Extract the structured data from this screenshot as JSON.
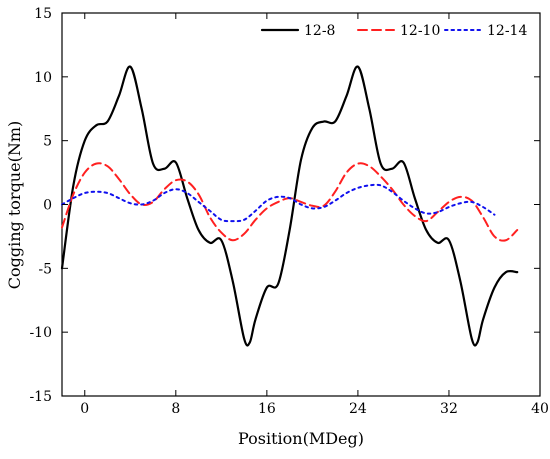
{
  "chart_data": {
    "type": "line",
    "xlabel": "Position(MDeg)",
    "ylabel": "Cogging torque(Nm)",
    "xlim": [
      -2,
      40
    ],
    "ylim": [
      -15,
      15
    ],
    "xticks": [
      0,
      8,
      16,
      24,
      32,
      40
    ],
    "yticks": [
      -15,
      -10,
      -5,
      0,
      5,
      10,
      15
    ],
    "legend_position": "top-right",
    "grid": false,
    "series": [
      {
        "name": "12-8",
        "color": "#000000",
        "dash": "solid",
        "x": [
          -2.0,
          -1.0,
          0.0,
          1.0,
          2.0,
          3.0,
          4.0,
          5.0,
          6.0,
          7.0,
          8.0,
          9.0,
          10.0,
          11.0,
          12.0,
          13.0,
          14.0,
          14.5,
          15.0,
          16.0,
          17.0,
          18.0,
          19.0,
          20.0,
          21.0,
          22.0,
          23.0,
          24.0,
          25.0,
          26.0,
          27.0,
          28.0,
          29.0,
          30.0,
          31.0,
          32.0,
          33.0,
          34.0,
          34.5,
          35.0,
          36.0,
          37.0,
          38.0
        ],
        "y": [
          -5.0,
          1.5,
          5.0,
          6.2,
          6.5,
          8.5,
          10.8,
          7.5,
          3.2,
          2.8,
          3.3,
          0.5,
          -2.0,
          -3.0,
          -2.8,
          -6.0,
          -10.5,
          -10.8,
          -9.0,
          -6.5,
          -6.2,
          -2.0,
          3.5,
          6.0,
          6.5,
          6.5,
          8.5,
          10.8,
          7.5,
          3.2,
          2.8,
          3.3,
          0.5,
          -2.0,
          -3.0,
          -2.8,
          -6.0,
          -10.5,
          -10.8,
          -9.0,
          -6.5,
          -5.3,
          -5.3
        ]
      },
      {
        "name": "12-10",
        "color": "#ff2020",
        "dash": "dashed",
        "x": [
          -2.0,
          -1.0,
          0.0,
          1.0,
          2.0,
          3.0,
          4.0,
          5.0,
          6.0,
          7.0,
          8.0,
          9.0,
          10.0,
          11.0,
          12.0,
          13.0,
          14.0,
          15.0,
          16.0,
          17.0,
          18.0,
          19.0,
          20.0,
          21.0,
          22.0,
          23.0,
          24.0,
          25.0,
          26.0,
          27.0,
          28.0,
          29.0,
          30.0,
          31.0,
          32.0,
          33.0,
          34.0,
          35.0,
          36.0,
          37.0,
          38.0
        ],
        "y": [
          -1.8,
          0.8,
          2.5,
          3.2,
          3.0,
          2.0,
          0.8,
          0.0,
          0.2,
          1.2,
          1.9,
          1.8,
          0.8,
          -1.0,
          -2.2,
          -2.8,
          -2.3,
          -1.2,
          -0.3,
          0.2,
          0.5,
          0.2,
          -0.1,
          -0.1,
          1.0,
          2.5,
          3.2,
          3.0,
          2.2,
          1.2,
          0.0,
          -0.9,
          -1.3,
          -0.6,
          0.2,
          0.6,
          0.3,
          -1.0,
          -2.5,
          -2.8,
          -2.0
        ]
      },
      {
        "name": "12-14",
        "color": "#1010ee",
        "dash": "dotted",
        "x": [
          -2.0,
          -1.0,
          0.0,
          1.0,
          2.0,
          3.0,
          4.0,
          5.0,
          6.0,
          7.0,
          8.0,
          9.0,
          10.0,
          11.0,
          12.0,
          13.0,
          14.0,
          15.0,
          16.0,
          17.0,
          18.0,
          19.0,
          20.0,
          21.0,
          22.0,
          23.0,
          24.0,
          25.0,
          26.0,
          27.0,
          28.0,
          29.0,
          30.0,
          31.0,
          32.0,
          33.0,
          34.0,
          35.0,
          36.0
        ],
        "y": [
          0.0,
          0.5,
          0.9,
          1.0,
          0.9,
          0.5,
          0.1,
          0.0,
          0.3,
          0.9,
          1.2,
          0.9,
          0.2,
          -0.5,
          -1.2,
          -1.3,
          -1.2,
          -0.5,
          0.3,
          0.6,
          0.5,
          0.0,
          -0.3,
          -0.2,
          0.3,
          0.9,
          1.3,
          1.5,
          1.5,
          1.0,
          0.3,
          -0.3,
          -0.7,
          -0.6,
          -0.2,
          0.1,
          0.2,
          -0.2,
          -0.8
        ]
      }
    ]
  }
}
